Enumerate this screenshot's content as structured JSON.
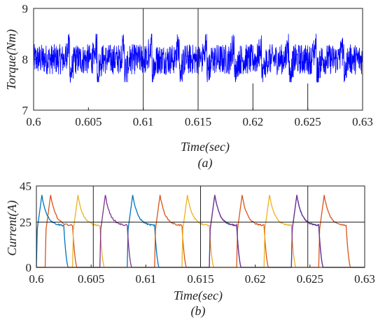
{
  "chart_data": [
    {
      "type": "line",
      "caption": "(a)",
      "xlabel": "Time(sec)",
      "ylabel": "Torque(Nm)",
      "xlim": [
        0.6,
        0.63
      ],
      "ylim": [
        7,
        9
      ],
      "x_ticks": [
        "0.6",
        "0.605",
        "0.61",
        "0.615",
        "0.62",
        "0.625",
        "0.63"
      ],
      "y_ticks": [
        "7",
        "8",
        "9"
      ],
      "grid": false,
      "series": [
        {
          "color": "#0000ff",
          "mean": 8.0,
          "ripple_band": [
            7.7,
            8.3
          ],
          "dip_min": 7.55,
          "peak_max": 8.5,
          "commutation_times": [
            0.6033,
            0.6058,
            0.6083,
            0.6108,
            0.6133,
            0.6158,
            0.6183,
            0.6208,
            0.6233,
            0.6258,
            0.6283
          ]
        }
      ],
      "vertical_lines": [
        0.61,
        0.615
      ],
      "short_marks": [
        0.62,
        0.625
      ]
    },
    {
      "type": "line",
      "caption": "(b)",
      "xlabel": "Time(sec)",
      "ylabel": "Current(A)",
      "xlim": [
        0.6,
        0.63
      ],
      "ylim": [
        0,
        45
      ],
      "x_ticks": [
        "0.6",
        "0.605",
        "0.61",
        "0.615",
        "0.62",
        "0.625",
        "0.63"
      ],
      "y_ticks": [
        "0",
        "25",
        "45"
      ],
      "grid": false,
      "reference_line": 25,
      "vertical_lines": [
        0.6052,
        0.615,
        0.6248
      ],
      "series": [
        {
          "color": "#0072bd",
          "rise_times": [
            0.6,
            0.6083,
            0.6158,
            0.6233
          ],
          "peak": 40,
          "plateau": 23
        },
        {
          "color": "#d95319",
          "rise_times": [
            0.6008,
            0.6108,
            0.6183,
            0.6258
          ],
          "peak": 40,
          "plateau": 23
        },
        {
          "color": "#edb120",
          "rise_times": [
            0.6033,
            0.6133,
            0.6208
          ],
          "peak": 40,
          "plateau": 23
        },
        {
          "color": "#7e2f8e",
          "rise_times": [
            0.6058,
            0.6158,
            0.6233
          ],
          "peak": 40,
          "plateau": 23
        }
      ]
    }
  ]
}
